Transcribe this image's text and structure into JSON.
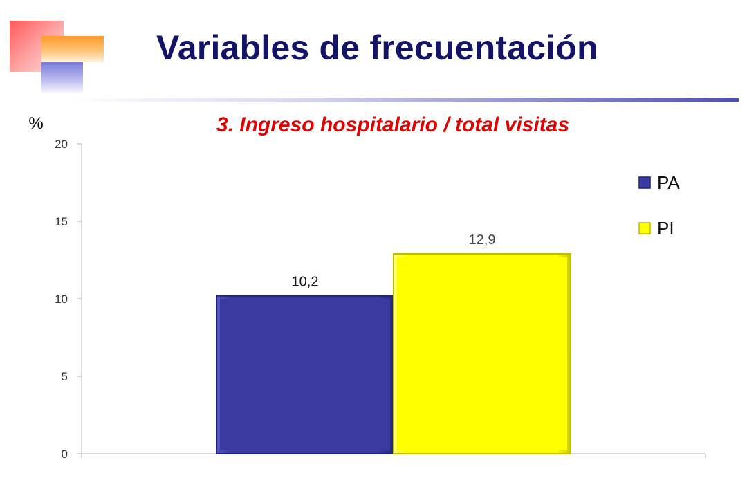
{
  "slide": {
    "title": "Variables de frecuentación",
    "title_color": "#141466"
  },
  "chart_data": {
    "type": "bar",
    "title": "3. Ingreso hospitalario / total visitas",
    "title_color": "#e00000",
    "ylabel": "%",
    "xlabel": "",
    "ylim": [
      0,
      20
    ],
    "yticks": [
      "0",
      "5",
      "10",
      "15",
      "20"
    ],
    "grid": false,
    "legend_position": "right",
    "series": [
      {
        "name": "PA",
        "value": 10.2,
        "label": "10,2",
        "color": "#3a3aa0"
      },
      {
        "name": "PI",
        "value": 12.9,
        "label": "12,9",
        "color": "#ffff00"
      }
    ]
  }
}
